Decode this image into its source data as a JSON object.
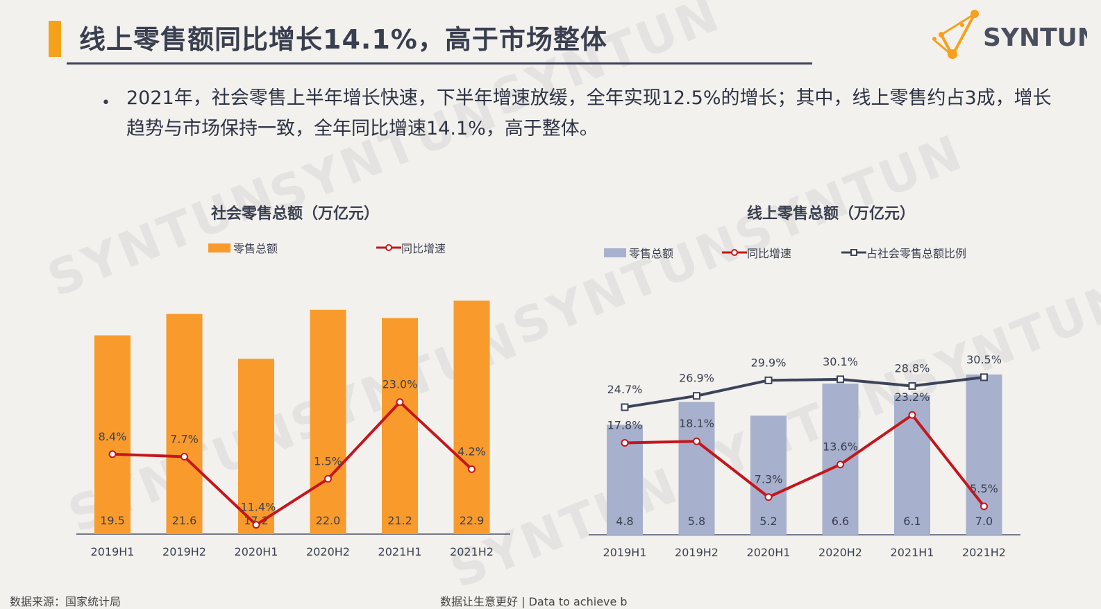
{
  "header": {
    "title": "线上零售额同比增长14.1%，高于市场整体",
    "logo_text": "SYNTUN"
  },
  "bullet": {
    "text": "2021年，社会零售上半年增长快速，下半年增速放缓，全年实现12.5%的增长；其中，线上零售约占3成，增长趋势与市场保持一致，全年同比增速14.1%，高于整体。"
  },
  "watermark": "SYNTUN",
  "footer": {
    "source": "数据来源：国家统计局",
    "center": "数据让生意更好 | Data to achieve b"
  },
  "colors": {
    "accent": "#f6a11a",
    "orange_bar": "#f89b2c",
    "blue_bar": "#a7b0cc",
    "red_line": "#c4161c",
    "navy_line": "#3b4459"
  },
  "chart_data": [
    {
      "type": "bar",
      "title": "社会零售总额（万亿元）",
      "categories": [
        "2019H1",
        "2019H2",
        "2020H1",
        "2020H2",
        "2021H1",
        "2021H2"
      ],
      "series": [
        {
          "name": "零售总额",
          "kind": "bar",
          "values": [
            19.5,
            21.6,
            17.2,
            22.0,
            21.2,
            22.9
          ],
          "labels": [
            "19.5",
            "21.6",
            "17.2",
            "22.0",
            "21.2",
            "22.9"
          ]
        },
        {
          "name": "同比增速",
          "kind": "line",
          "values": [
            8.4,
            7.7,
            -11.4,
            1.5,
            23.0,
            4.2
          ],
          "labels": [
            "8.4%",
            "7.7%",
            "-11.4%",
            "1.5%",
            "23.0%",
            "4.2%"
          ]
        }
      ],
      "bar_range": [
        0,
        24.5
      ],
      "line_range": [
        -14,
        56
      ]
    },
    {
      "type": "bar",
      "title": "线上零售总额（万亿元）",
      "categories": [
        "2019H1",
        "2019H2",
        "2020H1",
        "2020H2",
        "2021H1",
        "2021H2"
      ],
      "series": [
        {
          "name": "零售总额",
          "kind": "bar",
          "values": [
            4.8,
            5.8,
            5.2,
            6.6,
            6.1,
            7.0
          ],
          "labels": [
            "4.8",
            "5.8",
            "5.2",
            "6.6",
            "6.1",
            "7.0"
          ]
        },
        {
          "name": "同比增速",
          "kind": "line",
          "values": [
            17.8,
            18.1,
            7.3,
            13.6,
            23.2,
            5.5
          ],
          "labels": [
            "17.8%",
            "18.1%",
            "7.3%",
            "13.6%",
            "23.2%",
            "5.5%"
          ]
        },
        {
          "name": "占社会零售总额比例",
          "kind": "line",
          "values": [
            24.7,
            26.9,
            29.9,
            30.1,
            28.8,
            30.5
          ],
          "labels": [
            "24.7%",
            "26.9%",
            "29.9%",
            "30.1%",
            "28.8%",
            "30.5%"
          ]
        }
      ],
      "bar_range": [
        0,
        10.6
      ],
      "line_range": [
        0,
        47
      ]
    }
  ]
}
